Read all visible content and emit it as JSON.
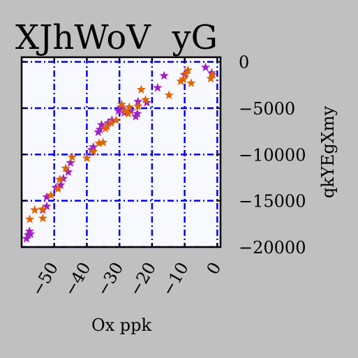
{
  "chart_data": {
    "type": "scatter",
    "title": "XJhWoV  yG",
    "xlabel": "Ox ppk",
    "ylabel": "qkYEgXmy",
    "xlim": [
      -60,
      1
    ],
    "ylim": [
      -20000,
      500
    ],
    "x_ticks": [
      -50,
      -40,
      -30,
      -20,
      -10,
      0
    ],
    "x_tick_labels": [
      "−50",
      "−40",
      "−30",
      "−20",
      "−10",
      "0"
    ],
    "y_ticks": [
      0,
      -5000,
      -10000,
      -15000,
      -20000
    ],
    "y_tick_labels": [
      "0",
      "−5000",
      "−10000",
      "−15000",
      "−20000"
    ],
    "y_axis_position": "right",
    "grid": true,
    "grid_color": "#0000ee",
    "plot_background": "#f8f8ff",
    "figure_background": "#c0c0c0",
    "marker": "star",
    "series": [
      {
        "color": "#a020c0",
        "points": [
          [
            -58.5,
            -19100
          ],
          [
            -58,
            -18700
          ],
          [
            -57.6,
            -18300
          ],
          [
            -57.3,
            -18600
          ],
          [
            -53.5,
            -16000
          ],
          [
            -52.3,
            -15600
          ],
          [
            -52.3,
            -14600
          ],
          [
            -49.5,
            -13600
          ],
          [
            -48,
            -13300
          ],
          [
            -47.2,
            -12600
          ],
          [
            -45.7,
            -11900
          ],
          [
            -45,
            -10900
          ],
          [
            -38.5,
            -9500
          ],
          [
            -38,
            -9200
          ],
          [
            -36.5,
            -7600
          ],
          [
            -36,
            -7300
          ],
          [
            -35.5,
            -6800
          ],
          [
            -33.5,
            -6600
          ],
          [
            -32.3,
            -6300
          ],
          [
            -30.3,
            -5300
          ],
          [
            -29.5,
            -4900
          ],
          [
            -28.5,
            -5500
          ],
          [
            -26.5,
            -5300
          ],
          [
            -25,
            -5900
          ],
          [
            -24.5,
            -5600
          ],
          [
            -24.3,
            -4300
          ],
          [
            -21.6,
            -4400
          ],
          [
            -18.3,
            -2800
          ],
          [
            -16.3,
            -1500
          ],
          [
            -10,
            -1400
          ],
          [
            -3.6,
            -600
          ],
          [
            -1.7,
            -1200
          ]
        ]
      },
      {
        "color": "#dd6600",
        "points": [
          [
            -57.5,
            -17000
          ],
          [
            -56,
            -16000
          ],
          [
            -53.5,
            -15900
          ],
          [
            -53.5,
            -16900
          ],
          [
            -51,
            -14400
          ],
          [
            -48.8,
            -13700
          ],
          [
            -48.3,
            -12700
          ],
          [
            -46.5,
            -11500
          ],
          [
            -44.5,
            -10300
          ],
          [
            -40,
            -10400
          ],
          [
            -38,
            -9700
          ],
          [
            -36.3,
            -8800
          ],
          [
            -35,
            -8700
          ],
          [
            -34.3,
            -7200
          ],
          [
            -33.8,
            -7000
          ],
          [
            -32.5,
            -6600
          ],
          [
            -31,
            -6300
          ],
          [
            -29.3,
            -4600
          ],
          [
            -28.2,
            -5300
          ],
          [
            -27.3,
            -5600
          ],
          [
            -27,
            -4900
          ],
          [
            -24.3,
            -4800
          ],
          [
            -23.3,
            -3000
          ],
          [
            -22,
            -4100
          ],
          [
            -14.8,
            -3600
          ],
          [
            -11.2,
            -2100
          ],
          [
            -10.4,
            -1900
          ],
          [
            -9.6,
            -1300
          ],
          [
            -9,
            -900
          ],
          [
            -8,
            -2300
          ],
          [
            -2,
            -1800
          ],
          [
            -1.4,
            -1400
          ]
        ]
      }
    ]
  }
}
